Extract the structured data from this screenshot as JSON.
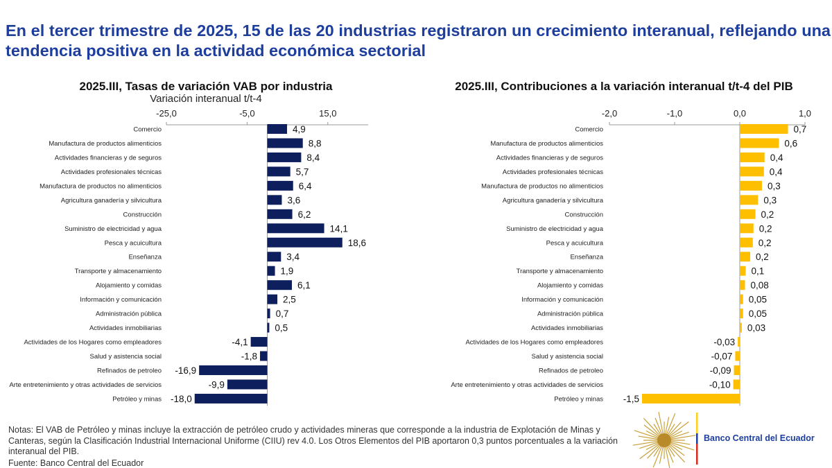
{
  "headline": "En el tercer trimestre de 2025, 15 de las 20 industrias registraron un crecimiento interanual, reflejando una tendencia positiva en la actividad económica sectorial",
  "chart_data": [
    {
      "type": "bar",
      "orientation": "horizontal",
      "title": "2025.III, Tasas de variación VAB por industria",
      "subtitle": "Variación interanual t/t-4",
      "xlim": [
        -25,
        25
      ],
      "ticks": [
        -25,
        -5,
        15
      ],
      "tick_labels": [
        "-25,0",
        "-5,0",
        "15,0"
      ],
      "color": "#0d1f5c",
      "categories": [
        "Comercio",
        "Manufactura de productos alimenticios",
        "Actividades financieras y de seguros",
        "Actividades profesionales técnicas",
        "Manufactura de productos no alimenticios",
        "Agricultura  ganadería y silvicultura",
        "Construcción",
        "Suministro de electricidad y agua",
        "Pesca y acuicultura",
        "Enseñanza",
        "Transporte y almacenamiento",
        "Alojamiento y comidas",
        "Información y comunicación",
        "Administración pública",
        "Actividades inmobiliarias",
        "Actividades de los Hogares como empleadores",
        "Salud y asistencia social",
        "Refinados de petroleo",
        "Arte entretenimiento y otras actividades de servicios",
        "Petróleo y minas"
      ],
      "values": [
        4.9,
        8.8,
        8.4,
        5.7,
        6.4,
        3.6,
        6.2,
        14.1,
        18.6,
        3.4,
        1.9,
        6.1,
        2.5,
        0.7,
        0.5,
        -4.1,
        -1.8,
        -16.9,
        -9.9,
        -18.0
      ],
      "value_labels": [
        "4,9",
        "8,8",
        "8,4",
        "5,7",
        "6,4",
        "3,6",
        "6,2",
        "14,1",
        "18,6",
        "3,4",
        "1,9",
        "6,1",
        "2,5",
        "0,7",
        "0,5",
        "-4,1",
        "-1,8",
        "-16,9",
        "-9,9",
        "-18,0"
      ]
    },
    {
      "type": "bar",
      "orientation": "horizontal",
      "title": "2025.III, Contribuciones a la variación interanual t/t-4 del PIB",
      "xlim": [
        -2,
        1
      ],
      "ticks": [
        -2,
        -1,
        0,
        1
      ],
      "tick_labels": [
        "-2,0",
        "-1,0",
        "0,0",
        "1,0"
      ],
      "color": "#fdbf00",
      "categories": [
        "Comercio",
        "Manufactura de productos alimenticios",
        "Actividades financieras y de seguros",
        "Actividades profesionales técnicas",
        "Manufactura de productos no alimenticios",
        "Agricultura  ganadería y silvicultura",
        "Construcción",
        "Suministro de electricidad y agua",
        "Pesca y acuicultura",
        "Enseñanza",
        "Transporte y almacenamiento",
        "Alojamiento y comidas",
        "Información y comunicación",
        "Administración pública",
        "Actividades inmobiliarias",
        "Actividades de los Hogares como empleadores",
        "Salud y asistencia social",
        "Refinados de petroleo",
        "Arte entretenimiento y otras actividades de servicios",
        "Petróleo y minas"
      ],
      "values": [
        0.74,
        0.6,
        0.38,
        0.37,
        0.34,
        0.28,
        0.24,
        0.21,
        0.2,
        0.16,
        0.09,
        0.08,
        0.05,
        0.05,
        0.03,
        -0.03,
        -0.07,
        -0.09,
        -0.1,
        -1.5
      ],
      "value_labels": [
        "0,7",
        "0,6",
        "0,4",
        "0,4",
        "0,3",
        "0,3",
        "0,2",
        "0,2",
        "0,2",
        "0,2",
        "0,1",
        "0,08",
        "0,05",
        "0,05",
        "0,03",
        "-0,03",
        "-0,07",
        "-0,09",
        "-0,10",
        "-1,5"
      ]
    }
  ],
  "notes": "Notas: El VAB de Petróleo y minas incluye la extracción de petróleo crudo y actividades mineras que corresponde a la industria de Explotación de Minas y Canteras, según la Clasificación Industrial Internacional Uniforme (CIIU) rev 4.0.  Los Otros Elementos del PIB aportaron 0,3 puntos porcentuales a la variación interanual del PIB.",
  "source": "Fuente: Banco Central del Ecuador",
  "logo": {
    "text": "Banco Central del Ecuador",
    "flag_colors": [
      "#fdd116",
      "#1d3e9c",
      "#d52b1e"
    ]
  }
}
